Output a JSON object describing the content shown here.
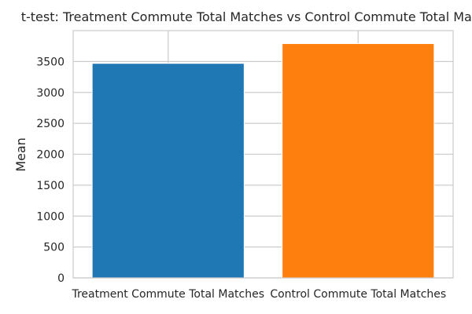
{
  "chart_data": {
    "type": "bar",
    "title": "t-test: Treatment Commute Total Matches vs Control Commute Total Matches",
    "xlabel": "",
    "ylabel": "Mean",
    "categories": [
      "Treatment Commute Total Matches",
      "Control Commute Total Matches"
    ],
    "values": [
      3470,
      3790
    ],
    "colors": [
      "#1f77b4",
      "#ff7f0e"
    ],
    "ylim": [
      0,
      4000
    ],
    "yticks": [
      0,
      500,
      1000,
      1500,
      2000,
      2500,
      3000,
      3500
    ],
    "grid": true
  }
}
